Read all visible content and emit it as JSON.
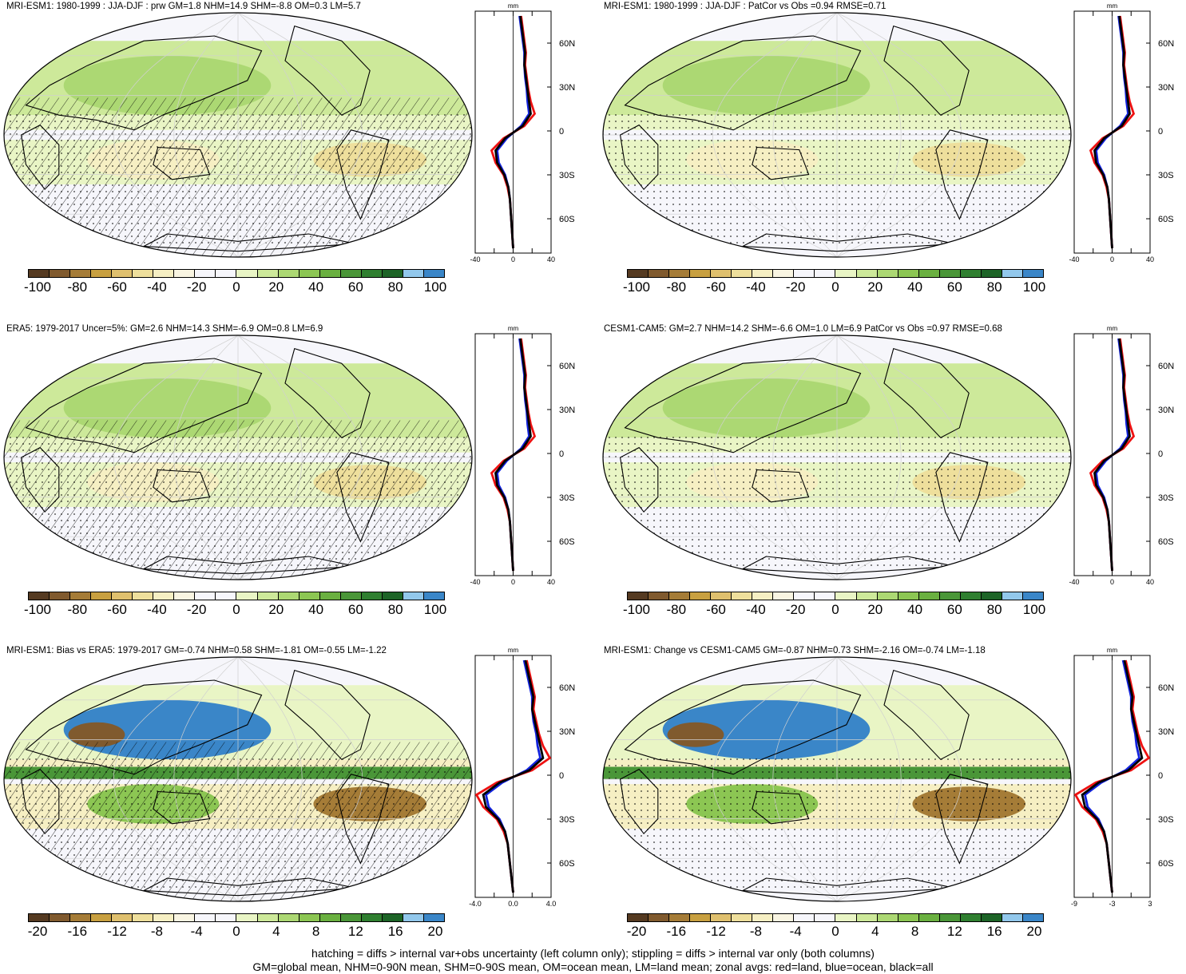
{
  "panels": [
    {
      "title": "MRI-ESM1: 1980-1999 : JJA-DJF : prw GM=1.8 NHM=14.9 SHM=-8.8 OM=0.3 LM=5.7",
      "cbar": [
        "-100",
        "-80",
        "-60",
        "-40",
        "-20",
        "0",
        "20",
        "40",
        "60",
        "80",
        "100"
      ],
      "profile_unit": "mm",
      "profile_xticks": [
        "-40",
        "0",
        "40"
      ]
    },
    {
      "title": "MRI-ESM1: 1980-1999 : JJA-DJF : PatCor vs Obs =0.94 RMSE=0.71",
      "cbar": [
        "-100",
        "-80",
        "-60",
        "-40",
        "-20",
        "0",
        "20",
        "40",
        "60",
        "80",
        "100"
      ],
      "profile_unit": "mm",
      "profile_xticks": [
        "-40",
        "0",
        "40"
      ]
    },
    {
      "title": "ERA5: 1979-2017 Uncer=5%: GM=2.6 NHM=14.3 SHM=-6.9 OM=0.8 LM=6.9",
      "cbar": [
        "-100",
        "-80",
        "-60",
        "-40",
        "-20",
        "0",
        "20",
        "40",
        "60",
        "80",
        "100"
      ],
      "profile_unit": "mm",
      "profile_xticks": [
        "-40",
        "0",
        "40"
      ]
    },
    {
      "title": "CESM1-CAM5: GM=2.7 NHM=14.2 SHM=-6.6 OM=1.0 LM=6.9 PatCor vs Obs =0.97 RMSE=0.68",
      "cbar": [
        "-100",
        "-80",
        "-60",
        "-40",
        "-20",
        "0",
        "20",
        "40",
        "60",
        "80",
        "100"
      ],
      "profile_unit": "mm",
      "profile_xticks": [
        "-40",
        "0",
        "40"
      ]
    },
    {
      "title": "MRI-ESM1: Bias vs ERA5: 1979-2017 GM=-0.74 NHM=0.58 SHM=-1.81 OM=-0.55 LM=-1.22",
      "cbar": [
        "-20",
        "-16",
        "-12",
        "-8",
        "-4",
        "0",
        "4",
        "8",
        "12",
        "16",
        "20"
      ],
      "profile_unit": "mm",
      "profile_xticks": [
        "-4.0",
        "0.0",
        "4.0"
      ]
    },
    {
      "title": "MRI-ESM1: Change vs CESM1-CAM5 GM=-0.87 NHM=0.73 SHM=-2.16 OM=-0.74 LM=-1.18",
      "cbar": [
        "-20",
        "-16",
        "-12",
        "-8",
        "-4",
        "0",
        "4",
        "8",
        "12",
        "16",
        "20"
      ],
      "profile_unit": "mm",
      "profile_xticks": [
        "-9",
        "-3",
        "3"
      ]
    }
  ],
  "lat_labels": [
    "60N",
    "30N",
    "0",
    "30S",
    "60S"
  ],
  "colorbar_colors": [
    "#553a21",
    "#805a2e",
    "#a57c37",
    "#c8a040",
    "#dfc06e",
    "#eedf9c",
    "#f6efc3",
    "#f9f5e2",
    "#f6f6fb",
    "#f6f6fb",
    "#e9f5c5",
    "#cde99a",
    "#acd873",
    "#8cc653",
    "#6ab040",
    "#4a9638",
    "#2f7f30",
    "#1d6427",
    "#92c8ec",
    "#3a86c8"
  ],
  "legend_colors": {
    "land": "#ee1111",
    "ocean": "#1122dd",
    "all": "#000000"
  },
  "footer": [
    "hatching = diffs > internal var+obs uncertainty (left column only); stippling = diffs > internal var only (both columns)",
    "GM=global mean, NHM=0-90N mean, SHM=0-90S mean, OM=ocean mean, LM=land mean; zonal avgs: red=land, blue=ocean, black=all"
  ]
}
